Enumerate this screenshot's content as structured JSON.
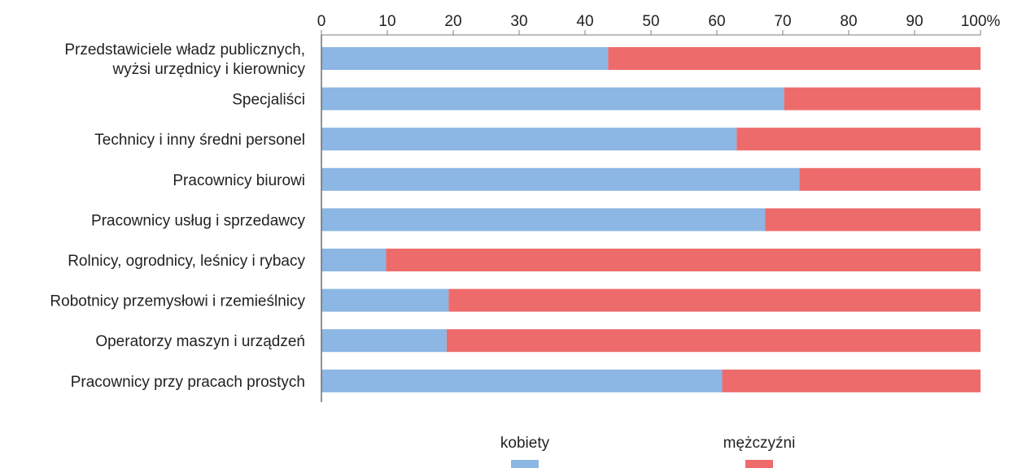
{
  "chart_data": {
    "type": "bar",
    "orientation": "horizontal",
    "stacked": true,
    "categories": [
      [
        "Przedstawiciele władz publicznych,",
        "wyżsi urzędnicy i kierownicy"
      ],
      [
        "Specjaliści"
      ],
      [
        "Technicy i inny średni personel"
      ],
      [
        "Pracownicy biurowi"
      ],
      [
        "Pracownicy usług i sprzedawcy"
      ],
      [
        "Rolnicy, ogrodnicy, leśnicy i rybacy"
      ],
      [
        "Robotnicy przemysłowi i rzemieślnicy"
      ],
      [
        "Operatorzy maszyn i urządzeń"
      ],
      [
        "Pracownicy przy pracach prostych"
      ]
    ],
    "series": [
      {
        "name": "kobiety",
        "color": "#8cb6e3",
        "values": [
          43.5,
          70.2,
          63.0,
          72.5,
          67.3,
          9.8,
          19.3,
          19.0,
          60.8
        ]
      },
      {
        "name": "mężczyźni",
        "color": "#ee6b6b",
        "values": [
          56.5,
          29.8,
          37.0,
          27.5,
          32.7,
          90.2,
          80.7,
          81.0,
          39.2
        ]
      }
    ],
    "x_axis": {
      "position": "top",
      "range": [
        0,
        100
      ],
      "ticks": [
        {
          "value": 0,
          "label": "0"
        },
        {
          "value": 10,
          "label": "10"
        },
        {
          "value": 20,
          "label": "20"
        },
        {
          "value": 30,
          "label": "30"
        },
        {
          "value": 40,
          "label": "40"
        },
        {
          "value": 50,
          "label": "50"
        },
        {
          "value": 60,
          "label": "60"
        },
        {
          "value": 70,
          "label": "70"
        },
        {
          "value": 80,
          "label": "80"
        },
        {
          "value": 90,
          "label": "90"
        },
        {
          "value": 100,
          "label": "100%"
        }
      ]
    },
    "grid": false,
    "legend": "bottom"
  }
}
